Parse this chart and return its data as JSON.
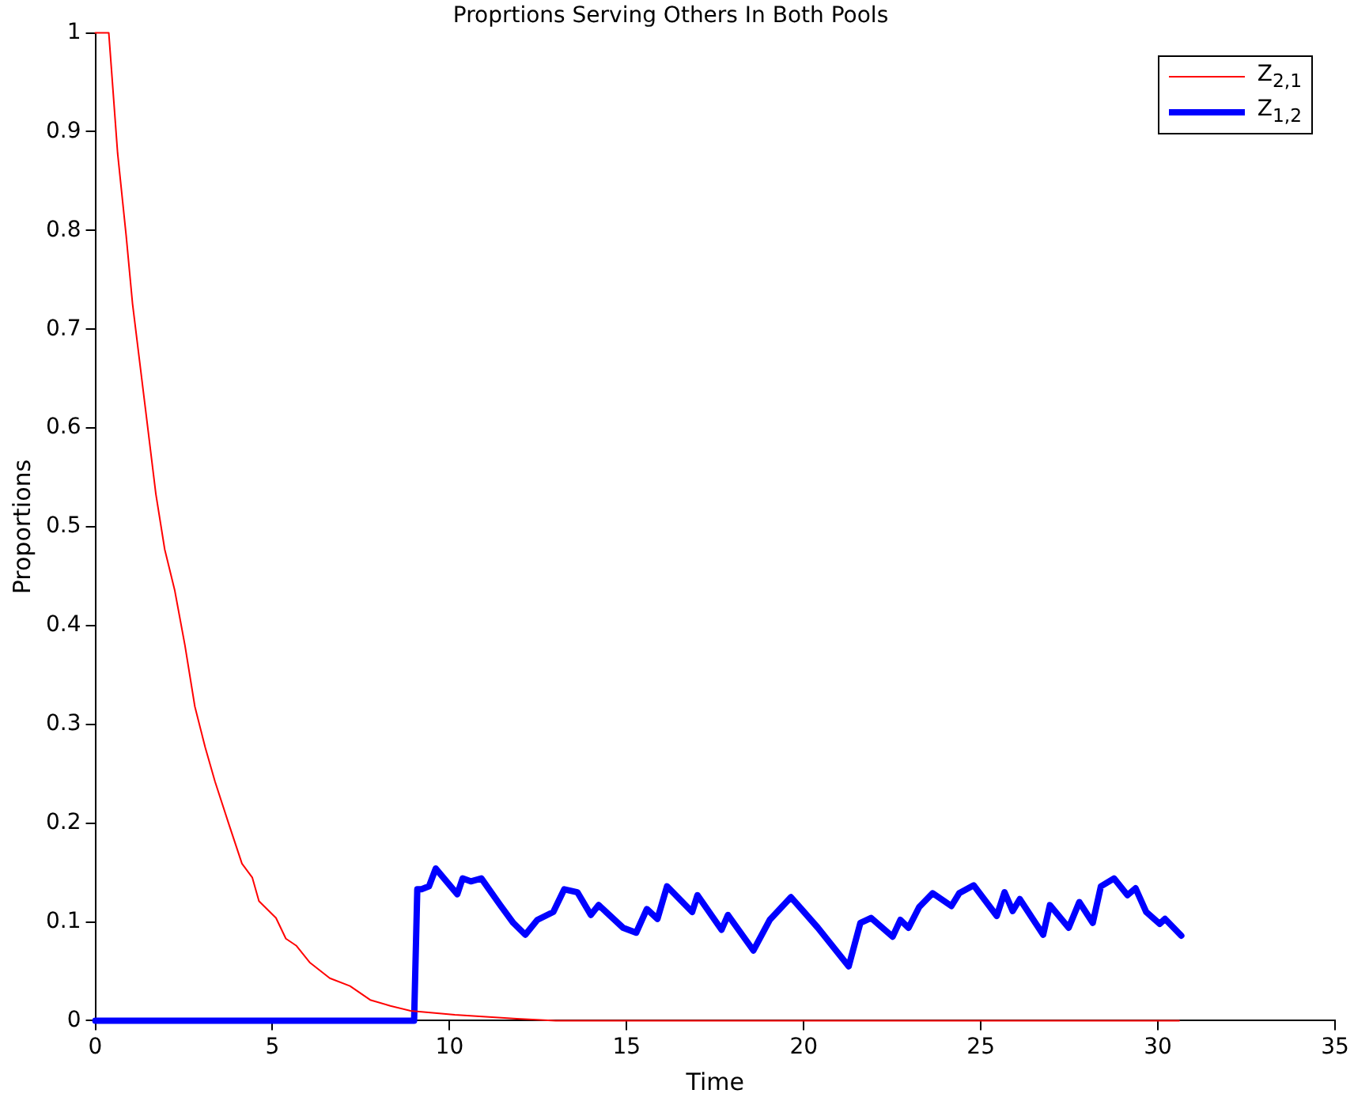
{
  "chart_data": {
    "type": "line",
    "title": "Proprtions Serving Others In Both Pools",
    "xlabel": "Time",
    "ylabel": "Proportions",
    "xlim": [
      0,
      35
    ],
    "xticks": [
      0,
      5,
      10,
      15,
      20,
      25,
      30,
      35
    ],
    "ylim": [
      0,
      1
    ],
    "yticks": [
      0,
      0.1,
      0.2,
      0.3,
      0.4,
      0.5,
      0.6,
      0.7,
      0.8,
      0.9,
      1
    ],
    "grid": false,
    "legend": "top right",
    "marker": "none",
    "line_style": "solid",
    "series": [
      {
        "name": "Z$_{2,1}$",
        "color": "#ff0000",
        "x": [
          0,
          0.38,
          0.63,
          0.87,
          1.05,
          1.43,
          1.71,
          1.96,
          2.24,
          2.53,
          2.81,
          3.1,
          3.38,
          3.76,
          4.14,
          4.43,
          4.62,
          5.1,
          5.38,
          5.67,
          6.05,
          6.62,
          7.19,
          7.76,
          8.33,
          8.9,
          10.15,
          11.9,
          13,
          30.6
        ],
        "values": [
          1,
          1,
          0.878,
          0.795,
          0.726,
          0.615,
          0.533,
          0.477,
          0.436,
          0.38,
          0.318,
          0.277,
          0.242,
          0.2,
          0.159,
          0.145,
          0.121,
          0.104,
          0.083,
          0.076,
          0.059,
          0.043,
          0.035,
          0.021,
          0.015,
          0.01,
          0.006,
          0.002,
          0,
          0
        ]
      },
      {
        "name": "Z$_{1,2}$",
        "color": "#0000ff",
        "x": [
          0,
          9.0,
          9.09,
          9.21,
          9.42,
          9.61,
          10.22,
          10.37,
          10.6,
          10.9,
          11.43,
          11.8,
          12.14,
          12.48,
          12.93,
          13.24,
          13.61,
          13.99,
          14.21,
          14.9,
          15.27,
          15.57,
          15.87,
          16.14,
          16.85,
          17.0,
          17.68,
          17.86,
          18.58,
          19.04,
          19.64,
          20.4,
          21.27,
          21.6,
          21.9,
          22.51,
          22.73,
          22.96,
          23.26,
          23.64,
          24.17,
          24.39,
          24.8,
          25.45,
          25.67,
          25.9,
          26.1,
          26.76,
          26.95,
          27.48,
          27.78,
          28.16,
          28.39,
          28.76,
          29.14,
          29.37,
          29.67,
          30.05,
          30.2,
          30.66
        ],
        "values": [
          0,
          0,
          0.133,
          0.133,
          0.136,
          0.154,
          0.128,
          0.144,
          0.141,
          0.144,
          0.117,
          0.099,
          0.087,
          0.102,
          0.11,
          0.133,
          0.13,
          0.107,
          0.117,
          0.094,
          0.089,
          0.113,
          0.103,
          0.136,
          0.11,
          0.127,
          0.092,
          0.107,
          0.071,
          0.102,
          0.125,
          0.094,
          0.055,
          0.099,
          0.104,
          0.085,
          0.102,
          0.094,
          0.115,
          0.129,
          0.116,
          0.129,
          0.137,
          0.106,
          0.13,
          0.111,
          0.123,
          0.087,
          0.117,
          0.094,
          0.12,
          0.099,
          0.136,
          0.144,
          0.127,
          0.134,
          0.11,
          0.098,
          0.103,
          0.086
        ]
      }
    ]
  }
}
